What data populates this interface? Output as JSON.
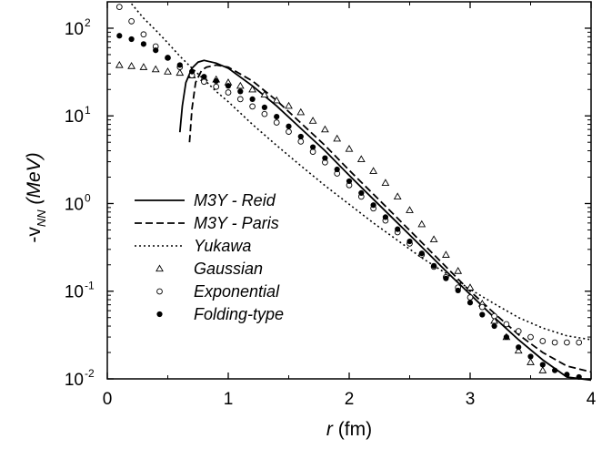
{
  "chart_data": {
    "type": "line",
    "title": "",
    "xlabel": "r (fm)",
    "ylabel": "-v_NN (MeV)",
    "ylabel_parts": {
      "prefix": "-v",
      "sub": "NN",
      "suffix": " (MeV)"
    },
    "xlabel_parts": {
      "var": "r",
      "unit": " (fm)"
    },
    "xlim": [
      0,
      4
    ],
    "ylim": [
      0.01,
      200
    ],
    "yscale": "log",
    "xticks": [
      0,
      1,
      2,
      3,
      4
    ],
    "xtick_labels": [
      "0",
      "1",
      "2",
      "3",
      "4"
    ],
    "yticks": [
      0.01,
      0.1,
      1,
      10,
      100
    ],
    "ytick_labels": [
      {
        "base": "10",
        "exp": "-2"
      },
      {
        "base": "10",
        "exp": "-1"
      },
      {
        "base": "10",
        "exp": "0"
      },
      {
        "base": "10",
        "exp": "1"
      },
      {
        "base": "10",
        "exp": "2"
      }
    ],
    "grid": false,
    "legend_position": "left-center",
    "series": [
      {
        "name": "M3Y - Reid",
        "style": "solid",
        "marker": "none",
        "x": [
          0.6,
          0.62,
          0.65,
          0.7,
          0.75,
          0.8,
          0.9,
          1.0,
          1.2,
          1.4,
          1.6,
          1.8,
          2.0,
          2.2,
          2.4,
          2.6,
          2.8,
          3.0,
          3.2,
          3.4,
          3.6,
          3.8,
          4.0
        ],
        "y": [
          6.5,
          13,
          24,
          35,
          41,
          43,
          40,
          35,
          22,
          13,
          7.2,
          4.0,
          2.1,
          1.12,
          0.6,
          0.32,
          0.17,
          0.092,
          0.05,
          0.028,
          0.0165,
          0.0105,
          0.0097
        ]
      },
      {
        "name": "M3Y - Paris",
        "style": "dashed",
        "marker": "none",
        "x": [
          0.68,
          0.7,
          0.73,
          0.78,
          0.82,
          0.9,
          1.0,
          1.2,
          1.4,
          1.6,
          1.8,
          2.0,
          2.2,
          2.4,
          2.6,
          2.8,
          3.0,
          3.2,
          3.4,
          3.6,
          3.8,
          4.0
        ],
        "y": [
          5.0,
          12,
          24,
          33,
          36,
          38,
          36,
          25,
          15,
          8.3,
          4.6,
          2.4,
          1.28,
          0.68,
          0.36,
          0.19,
          0.1,
          0.056,
          0.032,
          0.02,
          0.014,
          0.012
        ]
      },
      {
        "name": "Yukawa",
        "style": "dotted",
        "marker": "none",
        "x": [
          0.2,
          0.3,
          0.4,
          0.5,
          0.6,
          0.7,
          0.8,
          0.9,
          1.0,
          1.2,
          1.4,
          1.6,
          1.8,
          2.0,
          2.2,
          2.4,
          2.6,
          2.8,
          3.0,
          3.2,
          3.4,
          3.6,
          3.8,
          4.0
        ],
        "y": [
          190,
          130,
          95,
          68,
          48,
          35,
          26,
          19,
          14.5,
          8.0,
          4.6,
          2.7,
          1.6,
          0.98,
          0.6,
          0.38,
          0.24,
          0.16,
          0.105,
          0.072,
          0.05,
          0.038,
          0.031,
          0.028
        ]
      },
      {
        "name": "Gaussian",
        "style": "none",
        "marker": "triangle",
        "x": [
          0.1,
          0.2,
          0.3,
          0.4,
          0.5,
          0.6,
          0.7,
          0.8,
          0.9,
          1.0,
          1.1,
          1.2,
          1.3,
          1.4,
          1.5,
          1.6,
          1.7,
          1.8,
          1.9,
          2.0,
          2.1,
          2.2,
          2.3,
          2.4,
          2.5,
          2.6,
          2.7,
          2.8,
          2.9,
          3.0,
          3.1,
          3.2,
          3.3,
          3.4,
          3.5,
          3.6
        ],
        "y": [
          38,
          37,
          36,
          34,
          32,
          31,
          29,
          27,
          26,
          24,
          22,
          20,
          17.5,
          15,
          13,
          11,
          8.8,
          7.0,
          5.5,
          4.2,
          3.2,
          2.35,
          1.72,
          1.2,
          0.84,
          0.58,
          0.39,
          0.26,
          0.17,
          0.11,
          0.072,
          0.046,
          0.03,
          0.021,
          0.0155,
          0.0125
        ]
      },
      {
        "name": "Exponential",
        "style": "none",
        "marker": "circle-open",
        "x": [
          0.1,
          0.2,
          0.3,
          0.4,
          0.5,
          0.6,
          0.7,
          0.8,
          0.9,
          1.0,
          1.1,
          1.2,
          1.3,
          1.4,
          1.5,
          1.6,
          1.7,
          1.8,
          1.9,
          2.0,
          2.1,
          2.2,
          2.3,
          2.4,
          2.5,
          2.6,
          2.7,
          2.8,
          2.9,
          3.0,
          3.1,
          3.2,
          3.3,
          3.4,
          3.5,
          3.6,
          3.7,
          3.8,
          3.9
        ],
        "y": [
          175,
          120,
          85,
          62,
          46,
          36,
          29,
          24.5,
          21.5,
          18.5,
          15.5,
          12.8,
          10.5,
          8.4,
          6.6,
          5.1,
          3.9,
          2.95,
          2.2,
          1.62,
          1.2,
          0.88,
          0.64,
          0.47,
          0.35,
          0.26,
          0.19,
          0.145,
          0.11,
          0.085,
          0.066,
          0.052,
          0.042,
          0.035,
          0.03,
          0.027,
          0.026,
          0.026,
          0.026
        ]
      },
      {
        "name": "Folding-type",
        "style": "none",
        "marker": "circle-filled",
        "x": [
          0.1,
          0.2,
          0.3,
          0.4,
          0.5,
          0.6,
          0.7,
          0.8,
          0.9,
          1.0,
          1.1,
          1.2,
          1.3,
          1.4,
          1.5,
          1.6,
          1.7,
          1.8,
          1.9,
          2.0,
          2.1,
          2.2,
          2.3,
          2.4,
          2.5,
          2.6,
          2.7,
          2.8,
          2.9,
          3.0,
          3.1,
          3.2,
          3.3,
          3.4,
          3.5,
          3.6,
          3.7,
          3.8,
          3.9
        ],
        "y": [
          82,
          75,
          66,
          56,
          46,
          38,
          32,
          28,
          25,
          22,
          19,
          15.5,
          12.5,
          9.8,
          7.6,
          5.8,
          4.4,
          3.3,
          2.45,
          1.8,
          1.32,
          0.96,
          0.7,
          0.51,
          0.37,
          0.27,
          0.195,
          0.14,
          0.102,
          0.074,
          0.054,
          0.04,
          0.03,
          0.023,
          0.018,
          0.0145,
          0.0125,
          0.0112,
          0.0105
        ]
      }
    ]
  }
}
